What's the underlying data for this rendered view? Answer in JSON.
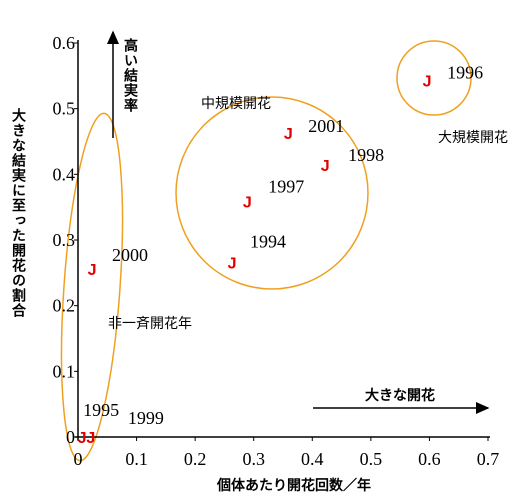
{
  "chart_data": {
    "type": "scatter",
    "xlabel": "個体あたり開花回数／年",
    "ylabel": "大きな結実に至った開花の割合",
    "xlim": [
      0,
      0.7
    ],
    "ylim": [
      0,
      0.6
    ],
    "xticks": [
      0,
      0.1,
      0.2,
      0.3,
      0.4,
      0.5,
      0.6,
      0.7
    ],
    "yticks": [
      0,
      0.1,
      0.2,
      0.3,
      0.4,
      0.5,
      0.6
    ],
    "marker": "J",
    "series": [
      {
        "color": "#e00000",
        "x": [
          0.596,
          0.359,
          0.422,
          0.289,
          0.263,
          0.024,
          0.007,
          0.022
        ],
        "values": [
          0.543,
          0.463,
          0.414,
          0.359,
          0.266,
          0.256,
          0,
          0
        ],
        "labels": [
          "1996",
          "2001",
          "1998",
          "1997",
          "1994",
          "2000",
          "1995",
          "1999"
        ]
      }
    ],
    "annotations": [
      "高い結実率",
      "大きな開花",
      "中規模開花",
      "大規模開花",
      "非一斉開花年"
    ]
  }
}
